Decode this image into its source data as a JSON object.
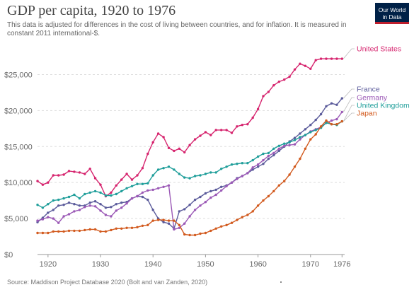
{
  "header": {
    "title": "GDP per capita, 1920 to 1976",
    "subtitle": "This data is adjusted for differences in the cost of living between countries, and for inflation. It is measured in constant 2011 international-$.",
    "logo_line1": "Our World",
    "logo_line2": "in Data"
  },
  "footer": {
    "source": "Source: Maddison Project Database 2020 (Bolt and van Zanden, 2020)"
  },
  "chart_data": {
    "type": "line",
    "title": "GDP per capita, 1920 to 1976",
    "subtitle": "This data is adjusted for differences in the cost of living between countries, and for inflation. It is measured in constant 2011 international-$.",
    "xlabel": "",
    "ylabel": "",
    "xlim": [
      1918,
      1976.5
    ],
    "ylim": [
      0,
      27500
    ],
    "y_ticks": [
      0,
      5000,
      10000,
      15000,
      20000,
      25000
    ],
    "y_tick_labels": [
      "$0",
      "$5,000",
      "$10,000",
      "$15,000",
      "$20,000",
      "$25,000"
    ],
    "x_ticks": [
      1920,
      1930,
      1940,
      1950,
      1960,
      1970,
      1976
    ],
    "x_tick_labels": [
      "1920",
      "1930",
      "1940",
      "1950",
      "1960",
      "1970",
      "1976"
    ],
    "grid": "horizontal dashed",
    "legend": "labels at right end of lines",
    "x": [
      1918,
      1919,
      1920,
      1921,
      1922,
      1923,
      1924,
      1925,
      1926,
      1927,
      1928,
      1929,
      1930,
      1931,
      1932,
      1933,
      1934,
      1935,
      1936,
      1937,
      1938,
      1939,
      1940,
      1941,
      1942,
      1943,
      1944,
      1945,
      1946,
      1947,
      1948,
      1949,
      1950,
      1951,
      1952,
      1953,
      1954,
      1955,
      1956,
      1957,
      1958,
      1959,
      1960,
      1961,
      1962,
      1963,
      1964,
      1965,
      1966,
      1967,
      1968,
      1969,
      1970,
      1971,
      1972,
      1973,
      1974,
      1975,
      1976
    ],
    "series": [
      {
        "name": "United States",
        "color": "#d6246e",
        "values": [
          10200,
          9700,
          10000,
          11000,
          11000,
          11100,
          11600,
          11500,
          11400,
          11200,
          11900,
          10600,
          9700,
          8100,
          8600,
          9600,
          10400,
          11200,
          10400,
          11000,
          12000,
          14000,
          15600,
          16800,
          16300,
          14800,
          14400,
          14700,
          14200,
          15200,
          16000,
          16500,
          17000,
          16600,
          17300,
          17300,
          17300,
          16900,
          17800,
          18000,
          18100,
          19000,
          20200,
          22000,
          22600,
          23500,
          24000,
          24300,
          24700,
          25700,
          26500,
          26200,
          25800,
          27000,
          27200,
          27200,
          27200,
          27200,
          27200
        ]
      },
      {
        "name": "France",
        "color": "#5b5b9b",
        "values": [
          4500,
          5100,
          5800,
          6200,
          6800,
          6900,
          7200,
          7000,
          6800,
          6800,
          7200,
          7400,
          7000,
          6500,
          6600,
          7000,
          7200,
          7300,
          7800,
          8100,
          8000,
          7600,
          6200,
          5000,
          4500,
          4300,
          3600,
          6000,
          6300,
          6900,
          7600,
          8000,
          8500,
          8800,
          9000,
          9400,
          9600,
          10000,
          10600,
          10900,
          11300,
          11800,
          12200,
          12600,
          13300,
          13800,
          14400,
          15000,
          15700,
          16200,
          16800,
          17400,
          18000,
          18700,
          19500,
          20600,
          21000,
          20800,
          21700
        ]
      },
      {
        "name": "Germany",
        "color": "#9b59b6",
        "values": [
          4700,
          4900,
          5200,
          5000,
          4400,
          5300,
          5600,
          6000,
          6200,
          6600,
          6800,
          6700,
          6100,
          5500,
          5300,
          6100,
          6500,
          7100,
          7800,
          8100,
          8600,
          8900,
          9000,
          9200,
          9400,
          9600,
          3500,
          3700,
          4300,
          5300,
          6200,
          6800,
          7300,
          7900,
          8300,
          8900,
          9500,
          10000,
          10500,
          10900,
          11300,
          12100,
          12500,
          13100,
          13700,
          14100,
          14700,
          15100,
          15200,
          15300,
          16000,
          16600,
          17100,
          17400,
          17700,
          18300,
          18600,
          18800,
          19800
        ]
      },
      {
        "name": "United Kingdom",
        "color": "#1f9e9a",
        "values": [
          6900,
          6500,
          7000,
          7500,
          7600,
          7800,
          8000,
          8300,
          7800,
          8400,
          8600,
          8800,
          8600,
          8200,
          8200,
          8400,
          8800,
          9200,
          9500,
          9800,
          9800,
          9900,
          11000,
          11800,
          12000,
          12200,
          11800,
          11200,
          10700,
          10600,
          10900,
          11000,
          11200,
          11400,
          11400,
          11900,
          12200,
          12500,
          12600,
          12700,
          12700,
          13100,
          13600,
          14000,
          14100,
          14700,
          15100,
          15400,
          15600,
          15900,
          16300,
          16600,
          17000,
          17300,
          17600,
          18300,
          18100,
          18000,
          18500
        ]
      },
      {
        "name": "Japan",
        "color": "#d25a1e",
        "values": [
          3000,
          3000,
          3000,
          3200,
          3200,
          3200,
          3300,
          3300,
          3300,
          3400,
          3500,
          3500,
          3200,
          3200,
          3400,
          3600,
          3600,
          3700,
          3700,
          3800,
          4000,
          4100,
          4700,
          4800,
          4800,
          4700,
          4700,
          4100,
          2800,
          2700,
          2700,
          2900,
          3000,
          3300,
          3600,
          3900,
          4100,
          4400,
          4800,
          5200,
          5500,
          6000,
          6800,
          7500,
          8100,
          8800,
          9600,
          10200,
          11100,
          12200,
          13300,
          14700,
          16000,
          16700,
          17800,
          18600,
          18100,
          18100,
          18500
        ]
      }
    ]
  }
}
